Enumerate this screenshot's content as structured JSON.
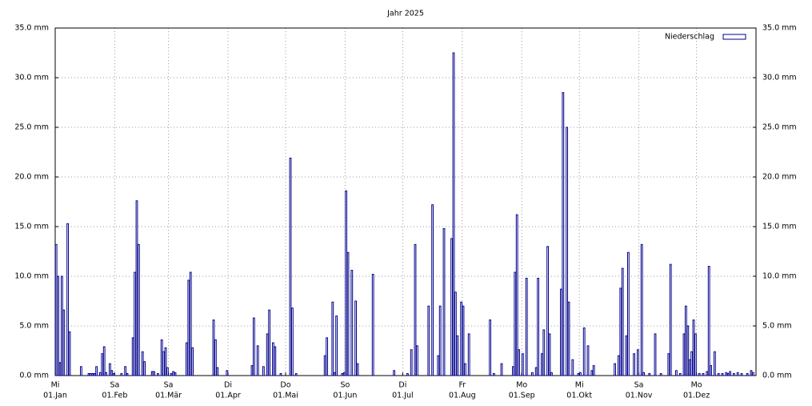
{
  "chart_data": {
    "type": "bar",
    "title": "Jahr 2025",
    "series": [
      {
        "name": "Niederschlag",
        "color": "#00008b",
        "values": [
          13.2,
          10.0,
          1.3,
          10.0,
          6.6,
          0,
          15.3,
          4.4,
          0,
          0,
          0,
          0,
          0,
          0.9,
          0,
          0,
          0,
          0.2,
          0.2,
          0.2,
          0.2,
          0.9,
          0,
          0.3,
          2.2,
          2.9,
          0.3,
          0,
          1.2,
          0.5,
          0.2,
          0,
          0,
          0,
          0.2,
          0,
          0.9,
          0.2,
          0,
          0,
          3.8,
          10.4,
          17.6,
          13.2,
          0,
          2.4,
          1.4,
          0,
          0,
          0,
          0.4,
          0.4,
          0,
          0.2,
          0,
          3.6,
          2.4,
          2.8,
          0.8,
          0,
          0.2,
          0.4,
          0.3,
          0,
          0,
          0,
          0,
          0,
          3.3,
          9.6,
          10.4,
          2.8,
          0,
          0,
          0,
          0,
          0,
          0,
          0,
          0,
          0,
          0,
          5.6,
          3.6,
          0.8,
          0,
          0,
          0,
          0,
          0.5,
          0,
          0,
          0,
          0,
          0,
          0,
          0,
          0,
          0,
          0,
          0,
          0,
          1.0,
          5.8,
          0,
          3.0,
          0,
          0,
          0.9,
          0,
          4.2,
          6.6,
          0,
          3.3,
          2.9,
          0,
          0,
          0.2,
          0,
          0,
          0,
          0,
          21.9,
          6.8,
          0,
          0.2,
          0,
          0,
          0,
          0,
          0,
          0,
          0,
          0,
          0,
          0,
          0,
          0,
          0,
          0,
          2.0,
          3.8,
          0,
          0,
          7.4,
          0.3,
          6.0,
          0,
          0,
          0.2,
          0.3,
          18.6,
          12.4,
          0,
          10.6,
          0,
          7.5,
          1.2,
          0,
          0,
          0,
          0,
          0,
          0,
          0,
          10.2,
          0,
          0,
          0,
          0,
          0,
          0,
          0,
          0,
          0,
          0,
          0.5,
          0,
          0,
          0,
          0,
          0,
          0,
          0.2,
          0,
          2.6,
          0,
          13.2,
          3.0,
          0,
          0,
          0,
          0,
          0,
          7.0,
          0,
          17.2,
          0,
          0,
          2.0,
          7.0,
          0,
          14.8,
          0,
          0,
          0,
          13.8,
          32.5,
          8.4,
          4.0,
          0,
          7.4,
          7.0,
          1.2,
          0,
          4.2,
          0,
          0,
          0,
          0,
          0,
          0,
          0,
          0,
          0,
          0,
          5.6,
          0,
          0.2,
          0,
          0,
          0,
          1.2,
          0,
          0,
          0,
          0,
          0,
          0.9,
          10.4,
          16.2,
          2.6,
          0,
          2.2,
          0,
          9.8,
          0,
          0,
          0.3,
          0,
          0.8,
          9.8,
          0,
          2.2,
          4.6,
          0,
          13.0,
          4.2,
          0.3,
          0,
          0,
          0,
          0,
          8.7,
          28.5,
          0,
          25.0,
          7.4,
          0,
          1.6,
          0,
          0,
          0.2,
          0.3,
          0,
          4.8,
          0,
          3.0,
          0,
          0.5,
          1.0,
          0,
          0,
          0,
          0,
          0,
          0,
          0,
          0,
          0,
          0,
          1.2,
          0,
          2.0,
          8.8,
          10.8,
          0,
          4.0,
          12.4,
          0,
          0,
          2.2,
          0,
          2.6,
          0,
          13.2,
          0.3,
          0,
          0,
          0.2,
          0,
          0,
          4.2,
          0,
          0,
          0.2,
          0,
          0,
          0,
          2.2,
          11.2,
          0,
          0,
          0.5,
          0,
          0.2,
          0,
          4.2,
          7.0,
          5.0,
          1.6,
          2.4,
          5.6,
          4.2,
          0,
          0.2,
          0,
          0.2,
          0,
          0.4,
          11.0,
          1.0,
          0,
          2.4,
          0,
          0.2,
          0,
          0.2,
          0,
          0.3,
          0.2,
          0.4,
          0,
          0.2,
          0,
          0.3,
          0,
          0.2,
          0,
          0,
          0.2,
          0,
          0.5,
          0.3,
          0
        ]
      }
    ],
    "xlim": [
      0,
      365
    ],
    "xticks": [
      {
        "value": 0,
        "weekday": "Mi",
        "label": "01.Jan"
      },
      {
        "value": 31,
        "weekday": "Sa",
        "label": "01.Feb"
      },
      {
        "value": 59,
        "weekday": "Sa",
        "label": "01.Mär"
      },
      {
        "value": 90,
        "weekday": "Di",
        "label": "01.Apr"
      },
      {
        "value": 120,
        "weekday": "Do",
        "label": "01.Mai"
      },
      {
        "value": 151,
        "weekday": "So",
        "label": "01.Jun"
      },
      {
        "value": 181,
        "weekday": "Di",
        "label": "01.Jul"
      },
      {
        "value": 212,
        "weekday": "Fr",
        "label": "01.Aug"
      },
      {
        "value": 243,
        "weekday": "Mo",
        "label": "01.Sep"
      },
      {
        "value": 273,
        "weekday": "Mi",
        "label": "01.Okt"
      },
      {
        "value": 304,
        "weekday": "Sa",
        "label": "01.Nov"
      },
      {
        "value": 334,
        "weekday": "Mo",
        "label": "01.Dez"
      }
    ],
    "ylim": [
      0,
      35
    ],
    "yticks": [
      {
        "value": 0,
        "label": "0.0 mm"
      },
      {
        "value": 5,
        "label": "5.0 mm"
      },
      {
        "value": 10,
        "label": "10.0 mm"
      },
      {
        "value": 15,
        "label": "15.0 mm"
      },
      {
        "value": 20,
        "label": "20.0 mm"
      },
      {
        "value": 25,
        "label": "25.0 mm"
      },
      {
        "value": 30,
        "label": "30.0 mm"
      },
      {
        "value": 35,
        "label": "35.0 mm"
      }
    ],
    "grid": true,
    "legend": "top-right"
  }
}
